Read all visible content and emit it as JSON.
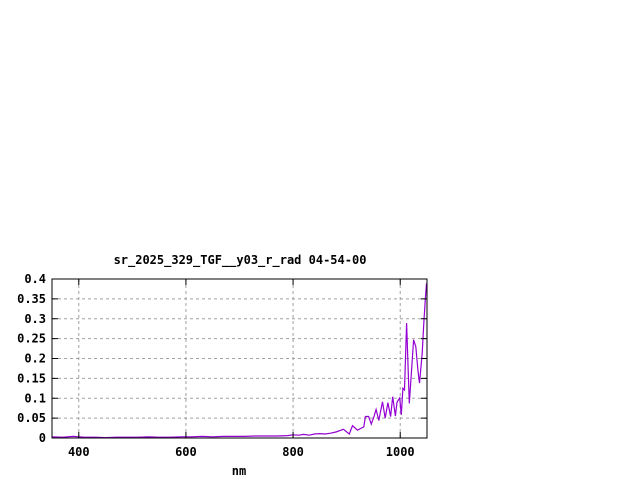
{
  "chart_data": {
    "type": "line",
    "title": "sr_2025_329_TGF__y03_r_rad 04-54-00",
    "xlabel": "nm",
    "ylabel": "",
    "xlim": [
      350,
      1050
    ],
    "ylim": [
      0,
      0.4
    ],
    "grid": true,
    "x_ticks": [
      400,
      600,
      800,
      1000
    ],
    "x_tick_labels": [
      "400",
      "600",
      "800",
      "1000"
    ],
    "y_ticks": [
      0,
      0.05,
      0.1,
      0.15,
      0.2,
      0.25,
      0.3,
      0.35,
      0.4
    ],
    "y_tick_labels": [
      "0",
      "0.05",
      "0.1",
      "0.15",
      "0.2",
      "0.25",
      "0.3",
      "0.35",
      "0.4"
    ],
    "series": [
      {
        "color": "#9400d3",
        "x": [
          350,
          370,
          390,
          410,
          430,
          450,
          470,
          490,
          510,
          530,
          550,
          570,
          590,
          610,
          630,
          650,
          670,
          690,
          710,
          730,
          750,
          770,
          790,
          800,
          810,
          820,
          830,
          840,
          850,
          860,
          870,
          880,
          894,
          905,
          911,
          920,
          932,
          935,
          941,
          946,
          951,
          955,
          960,
          967,
          972,
          977,
          982,
          986,
          991,
          994,
          999,
          1002,
          1005,
          1008,
          1012,
          1017,
          1020,
          1025,
          1029,
          1033,
          1036,
          1041,
          1044,
          1047,
          1049
        ],
        "y": [
          0.003,
          0.002,
          0.004,
          0.002,
          0.002,
          0.001,
          0.002,
          0.002,
          0.002,
          0.003,
          0.002,
          0.002,
          0.003,
          0.003,
          0.004,
          0.003,
          0.004,
          0.004,
          0.004,
          0.005,
          0.005,
          0.005,
          0.006,
          0.008,
          0.007,
          0.009,
          0.007,
          0.01,
          0.011,
          0.01,
          0.012,
          0.015,
          0.022,
          0.01,
          0.031,
          0.02,
          0.028,
          0.054,
          0.054,
          0.035,
          0.054,
          0.072,
          0.044,
          0.091,
          0.05,
          0.089,
          0.054,
          0.104,
          0.055,
          0.09,
          0.101,
          0.058,
          0.125,
          0.121,
          0.289,
          0.087,
          0.146,
          0.247,
          0.23,
          0.171,
          0.138,
          0.213,
          0.289,
          0.352,
          0.389
        ]
      }
    ]
  }
}
